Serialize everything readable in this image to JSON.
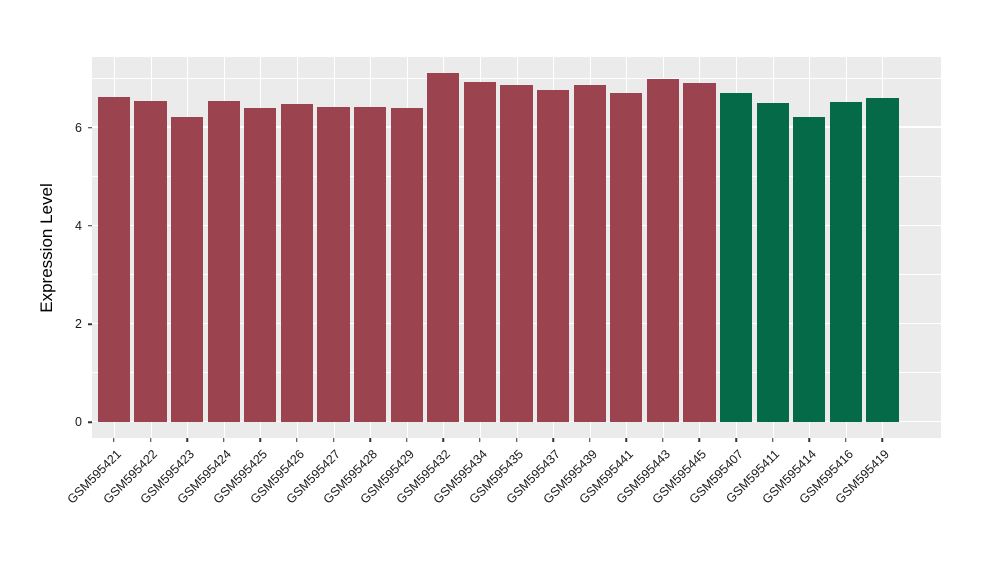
{
  "chart_data": {
    "type": "bar",
    "title": "",
    "xlabel": "",
    "ylabel": "Expression Level",
    "categories": [
      "GSM595421",
      "GSM595422",
      "GSM595423",
      "GSM595424",
      "GSM595425",
      "GSM595426",
      "GSM595427",
      "GSM595428",
      "GSM595429",
      "GSM595432",
      "GSM595434",
      "GSM595435",
      "GSM595437",
      "GSM595439",
      "GSM595441",
      "GSM595443",
      "GSM595445",
      "GSM595407",
      "GSM595411",
      "GSM595414",
      "GSM595416",
      "GSM595419"
    ],
    "values": [
      6.62,
      6.54,
      6.21,
      6.54,
      6.41,
      6.49,
      6.43,
      6.43,
      6.4,
      7.11,
      6.94,
      6.88,
      6.77,
      6.88,
      6.71,
      6.99,
      6.91,
      6.7,
      6.5,
      6.21,
      6.53,
      6.6
    ],
    "bar_groups": [
      "group1",
      "group1",
      "group1",
      "group1",
      "group1",
      "group1",
      "group1",
      "group1",
      "group1",
      "group1",
      "group1",
      "group1",
      "group1",
      "group1",
      "group1",
      "group1",
      "group1",
      "group2",
      "group2",
      "group2",
      "group2",
      "group2"
    ],
    "group_colors": {
      "group1": "#9C4350",
      "group2": "#056A48"
    },
    "yticks": [
      0,
      2,
      4,
      6
    ],
    "minor_gridlines": [
      1,
      3,
      5,
      7
    ],
    "ylim": [
      0,
      7.11
    ],
    "panel_value_range": [
      -0.32,
      7.44
    ],
    "bar_slot_fraction": 0.88,
    "edge_padding_slots": 0.6,
    "panel_background": "#EBEBEB",
    "gridline_color": "#FFFFFF",
    "legend": "none",
    "grid": "on"
  }
}
